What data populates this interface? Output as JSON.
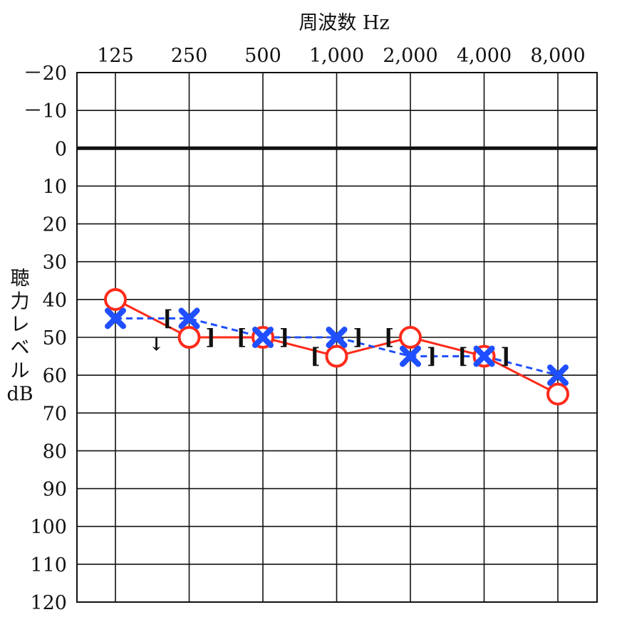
{
  "chart_data": {
    "type": "line",
    "xlabel": "周波数 Hz",
    "ylabel_chars": [
      "聴",
      "力",
      "レ",
      "ベ",
      "ル",
      "dB"
    ],
    "x_ticks": [
      "125",
      "250",
      "500",
      "1,000",
      "2,000",
      "4,000",
      "8,000"
    ],
    "y_ticks": [
      "－20",
      "－10",
      "0",
      "10",
      "20",
      "30",
      "40",
      "50",
      "60",
      "70",
      "80",
      "90",
      "100",
      "110",
      "120"
    ],
    "y_values": [
      -20,
      -10,
      0,
      10,
      20,
      30,
      40,
      50,
      60,
      70,
      80,
      90,
      100,
      110,
      120
    ],
    "ylim": [
      -20,
      120
    ],
    "y_reversed": true,
    "x_scale": "log2",
    "grid": true,
    "series": [
      {
        "marker": "circle",
        "line": "solid",
        "color": "#ff2a1a",
        "x": [
          125,
          250,
          500,
          1000,
          2000,
          4000,
          8000
        ],
        "y": [
          40,
          50,
          50,
          55,
          50,
          55,
          65
        ]
      },
      {
        "marker": "cross",
        "line": "dashed",
        "color": "#1f4fff",
        "x": [
          125,
          250,
          500,
          1000,
          2000,
          4000,
          8000
        ],
        "y": [
          45,
          45,
          50,
          50,
          55,
          55,
          60
        ]
      }
    ],
    "bone_conduction": {
      "left_bracket": {
        "marker": "[",
        "x": [
          250,
          500,
          1000,
          2000,
          4000
        ],
        "y": [
          45,
          50,
          55,
          50,
          55
        ]
      },
      "right_bracket": {
        "marker": "]",
        "x": [
          250,
          500,
          1000,
          2000,
          4000
        ],
        "y": [
          50,
          50,
          50,
          55,
          55
        ]
      }
    },
    "no_response_arrow": {
      "marker": "↓",
      "x": 250,
      "y": 52
    }
  }
}
